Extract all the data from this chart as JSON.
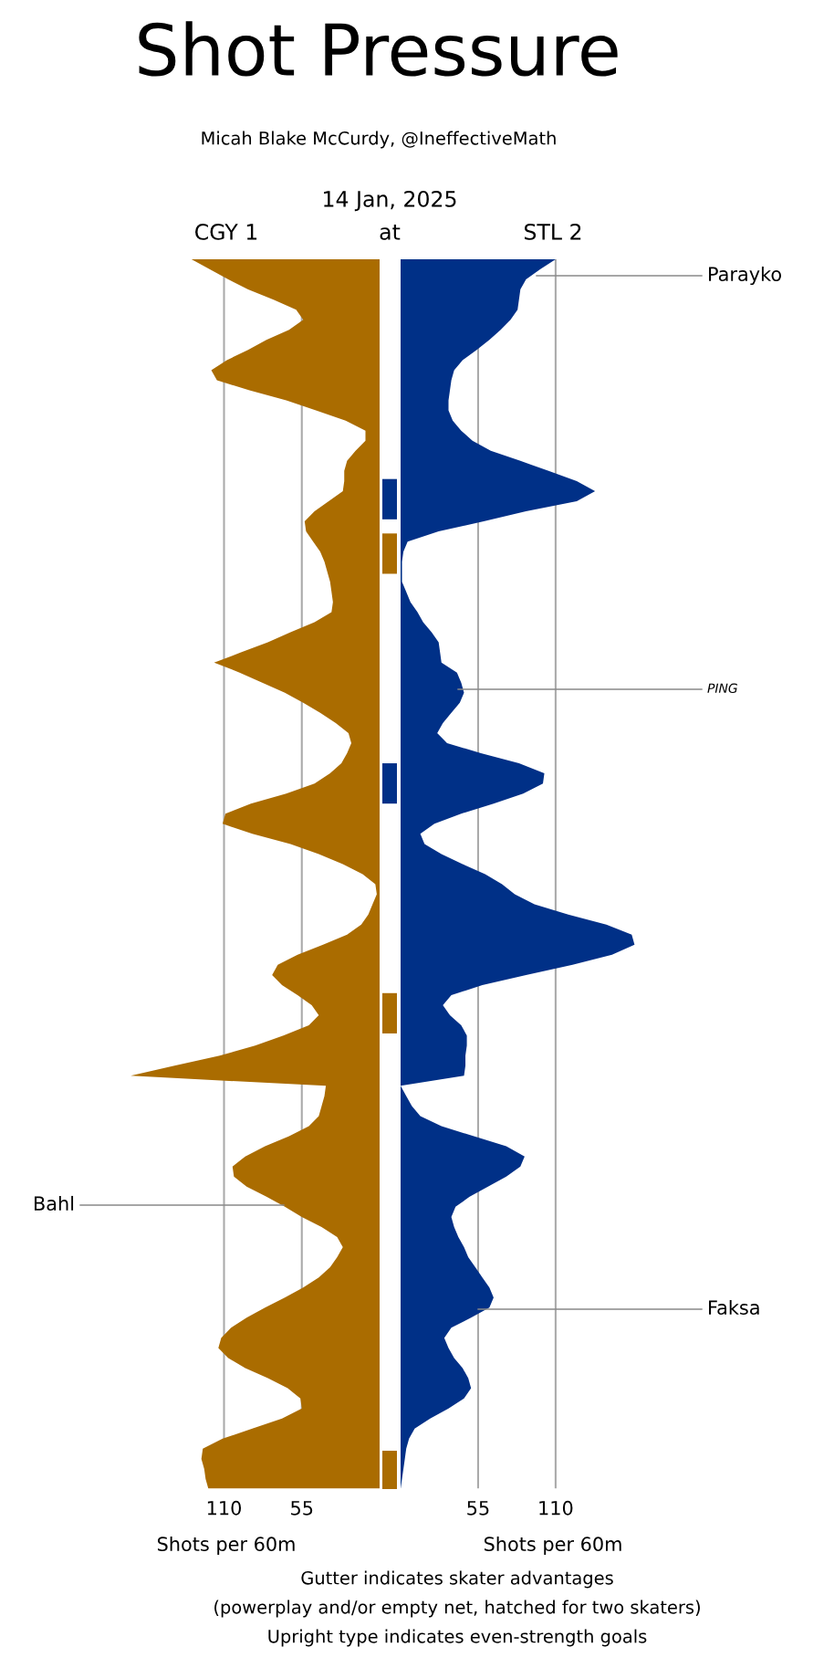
{
  "chart_data": [
    {
      "type": "area",
      "orientation": "horizontal",
      "title": "Shot Pressure",
      "subtitle": "Micah Blake McCurdy, @IneffectiveMath",
      "xlabel": "Shots per 60m",
      "annotations": [
        "14 Jan, 2025",
        "at",
        "CGY 1",
        "Bahl",
        "Gutter indicates skater advantages",
        "(powerplay and/or empty net, hatched for two skaters)",
        "Upright type indicates even-strength goals"
      ],
      "categories": [
        null,
        null,
        null,
        null,
        null,
        null,
        null,
        null,
        null,
        null,
        null,
        null,
        null,
        null,
        null,
        null,
        null,
        null,
        null,
        null,
        null,
        null,
        null,
        null,
        null,
        null,
        null,
        null,
        null,
        null,
        null,
        null,
        null,
        null,
        null,
        null,
        null,
        null,
        null,
        null,
        null,
        null,
        null,
        null,
        null,
        null,
        null,
        null,
        null,
        null,
        null,
        null,
        null,
        null,
        null,
        null,
        null,
        null,
        null,
        null,
        null,
        null,
        null,
        null,
        null,
        null,
        null,
        null,
        null,
        null,
        null,
        null,
        null,
        null,
        null,
        null,
        null,
        null,
        null,
        null,
        null,
        null,
        null,
        null,
        null,
        null,
        null,
        null,
        null,
        null,
        null,
        null,
        null,
        null,
        null,
        null,
        null,
        null,
        null,
        null,
        null,
        null,
        null,
        null,
        null,
        null,
        null,
        null,
        null,
        null,
        null,
        null,
        null,
        null,
        null,
        null,
        null,
        null,
        null,
        null,
        null,
        null,
        null
      ],
      "xlim": [
        180,
        0
      ],
      "xticks": [
        110,
        55
      ],
      "grid": "x",
      "tick_labels": "x",
      "series": [
        {
          "color": "#aa6c00",
          "values": [
            133,
            120,
            107,
            93,
            75,
            59,
            54,
            64,
            80,
            93,
            108,
            119,
            115,
            92,
            66,
            45,
            24,
            10,
            10,
            17,
            23,
            25,
            25,
            26,
            36,
            46,
            53,
            52,
            47,
            42,
            39,
            37,
            35,
            34,
            33,
            34,
            46,
            63,
            79,
            98,
            117,
            99,
            83,
            67,
            54,
            42,
            31,
            22,
            20,
            23,
            27,
            35,
            46,
            66,
            91,
            109,
            111,
            90,
            63,
            43,
            26,
            12,
            3,
            2,
            5,
            8,
            13,
            23,
            40,
            58,
            72,
            76,
            69,
            58,
            48,
            43,
            50,
            68,
            88,
            113,
            145,
            176,
            38,
            39,
            41,
            43,
            50,
            64,
            81,
            95,
            104,
            103,
            94,
            80,
            67,
            55,
            41,
            30,
            26,
            30,
            35,
            43,
            54,
            67,
            81,
            94,
            105,
            112,
            114,
            107,
            95,
            79,
            65,
            56,
            55,
            69,
            90,
            111,
            125,
            126,
            124,
            123,
            121
          ]
        }
      ]
    },
    {
      "type": "area",
      "orientation": "horizontal",
      "xlabel": "Shots per 60m",
      "annotations": [
        "STL 2",
        "Parayko",
        "PING",
        "Faksa"
      ],
      "categories": [
        null,
        null,
        null,
        null,
        null,
        null,
        null,
        null,
        null,
        null,
        null,
        null,
        null,
        null,
        null,
        null,
        null,
        null,
        null,
        null,
        null,
        null,
        null,
        null,
        null,
        null,
        null,
        null,
        null,
        null,
        null,
        null,
        null,
        null,
        null,
        null,
        null,
        null,
        null,
        null,
        null,
        null,
        null,
        null,
        null,
        null,
        null,
        null,
        null,
        null,
        null,
        null,
        null,
        null,
        null,
        null,
        null,
        null,
        null,
        null,
        null,
        null,
        null,
        null,
        null,
        null,
        null,
        null,
        null,
        null,
        null,
        null,
        null,
        null,
        null,
        null,
        null,
        null,
        null,
        null,
        null,
        null,
        null,
        null,
        null,
        null,
        null,
        null,
        null,
        null,
        null,
        null,
        null,
        null,
        null,
        null,
        null,
        null,
        null,
        null,
        null,
        null,
        null,
        null,
        null,
        null,
        null,
        null,
        null,
        null,
        null,
        null,
        null,
        null,
        null,
        null,
        null,
        null,
        null,
        null,
        null,
        null,
        null
      ],
      "xlim": [
        0,
        180
      ],
      "xticks": [
        55,
        110
      ],
      "grid": "x",
      "tick_labels": "x",
      "series": [
        {
          "color": "#003087",
          "values": [
            110,
            99,
            89,
            85,
            84,
            83,
            78,
            71,
            63,
            54,
            44,
            38,
            36,
            35,
            34,
            34,
            37,
            43,
            51,
            64,
            85,
            105,
            125,
            138,
            125,
            89,
            59,
            27,
            5,
            2,
            1,
            1,
            1,
            4,
            7,
            12,
            16,
            22,
            27,
            28,
            29,
            40,
            43,
            45,
            42,
            36,
            30,
            26,
            33,
            57,
            84,
            102,
            101,
            87,
            66,
            43,
            24,
            14,
            17,
            29,
            44,
            60,
            72,
            81,
            95,
            119,
            146,
            164,
            166,
            150,
            122,
            89,
            58,
            36,
            30,
            35,
            43,
            47,
            47,
            46,
            46,
            45,
            0,
            4,
            8,
            14,
            29,
            52,
            75,
            88,
            85,
            75,
            62,
            49,
            39,
            36,
            38,
            41,
            45,
            48,
            53,
            58,
            63,
            66,
            63,
            50,
            36,
            31,
            34,
            38,
            44,
            48,
            50,
            45,
            34,
            21,
            10,
            6,
            4,
            3,
            2,
            1,
            0
          ]
        }
      ]
    }
  ]
}
